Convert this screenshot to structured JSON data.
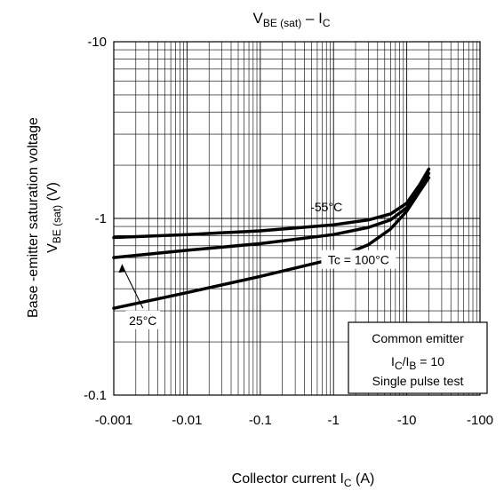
{
  "chart_data": {
    "type": "line",
    "title": {
      "main": "V",
      "sub1": "BE (sat)",
      "mid": " – I",
      "sub2": "C"
    },
    "xlabel": {
      "text": "Collector current   I",
      "sub": "C",
      "unit": "   (A)"
    },
    "ylabel": {
      "line1": "Base -emitter saturation voltage",
      "main": "V",
      "sub": "BE (sat)",
      "unit": "   (V)"
    },
    "x_scale": "log",
    "y_scale": "log",
    "xlim": [
      -0.001,
      -100
    ],
    "ylim": [
      -0.1,
      -10
    ],
    "x_ticks": [
      "-0.001",
      "-0.01",
      "-0.1",
      "-1",
      "-10",
      "-100"
    ],
    "y_ticks": [
      "-10",
      "-1",
      "-0.1"
    ],
    "grid": true,
    "series": [
      {
        "name": "-55°C",
        "x": [
          -0.001,
          -0.01,
          -0.1,
          -1,
          -3,
          -6,
          -10,
          -15,
          -20
        ],
        "y": [
          -0.78,
          -0.81,
          -0.85,
          -0.92,
          -0.98,
          -1.06,
          -1.22,
          -1.55,
          -1.9
        ]
      },
      {
        "name": "25°C",
        "x": [
          -0.001,
          -0.01,
          -0.1,
          -1,
          -3,
          -6,
          -10,
          -15,
          -20
        ],
        "y": [
          -0.6,
          -0.66,
          -0.72,
          -0.81,
          -0.89,
          -0.98,
          -1.15,
          -1.5,
          -1.8
        ]
      },
      {
        "name": "Tc = 100°C",
        "x": [
          -0.001,
          -0.01,
          -0.1,
          -1,
          -3,
          -6,
          -10,
          -15,
          -20
        ],
        "y": [
          -0.31,
          -0.38,
          -0.47,
          -0.59,
          -0.71,
          -0.87,
          -1.1,
          -1.42,
          -1.7
        ]
      }
    ],
    "annotations": [
      {
        "text": "-55°C",
        "series": "-55°C"
      },
      {
        "text": "25°C",
        "series": "25°C"
      },
      {
        "text": "Tc = 100°C",
        "series": "Tc = 100°C"
      }
    ],
    "legend_box": {
      "line1": "Common emitter",
      "line2": {
        "a": "I",
        "a_sub": "C",
        "mid": "/I",
        "b_sub": "B",
        "rest": " = 10"
      },
      "line3": "Single pulse test"
    }
  }
}
